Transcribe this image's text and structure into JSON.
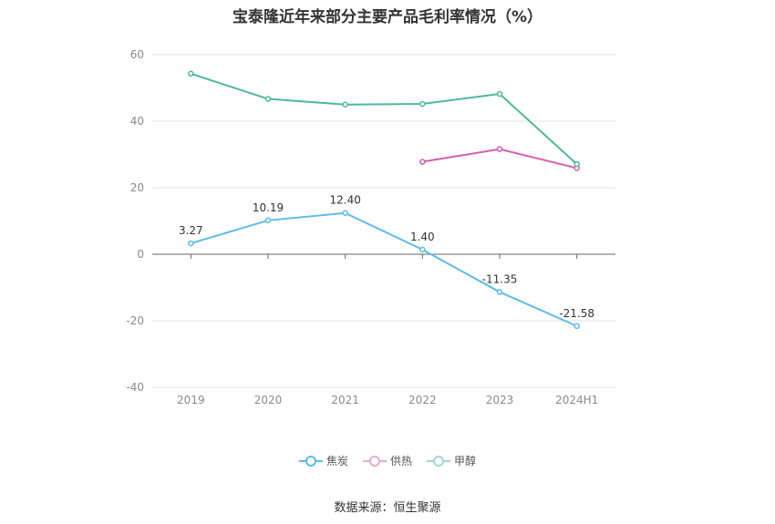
{
  "chart_data": {
    "type": "line",
    "title": "宝泰隆近年来部分主要产品毛利率情况（%）",
    "categories": [
      "2019",
      "2020",
      "2021",
      "2022",
      "2023",
      "2024H1"
    ],
    "yticks": [
      "60",
      "40",
      "20",
      "0",
      "-20",
      "-40"
    ],
    "ylim": [
      -40,
      60
    ],
    "series": [
      {
        "name": "焦炭",
        "color": "#5bbde8",
        "values": [
          3.27,
          10.19,
          12.4,
          1.4,
          -11.35,
          -21.58
        ],
        "labels": [
          "3.27",
          "10.19",
          "12.40",
          "1.40",
          "-11.35",
          "-21.58"
        ]
      },
      {
        "name": "供热",
        "color": "#d45fae",
        "values": [
          null,
          null,
          null,
          27.8,
          31.6,
          25.9
        ],
        "labels": []
      },
      {
        "name": "甲醇",
        "color": "#4cb99e",
        "values": [
          54.3,
          46.7,
          45.0,
          45.2,
          48.2,
          27.1
        ],
        "labels": []
      }
    ],
    "legend_position": "bottom-center",
    "grid": true
  },
  "footer": {
    "source": "数据来源：恒生聚源"
  }
}
